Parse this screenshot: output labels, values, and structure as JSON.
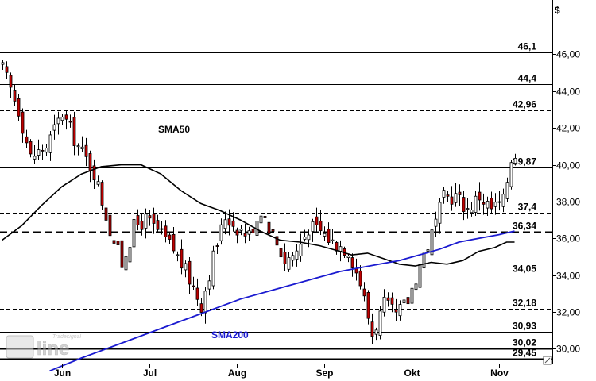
{
  "chart_data": {
    "type": "candlestick",
    "unit": "$",
    "ylim": [
      29.2,
      47.4
    ],
    "y_ticks": [
      "46,00",
      "44,00",
      "42,00",
      "40,00",
      "38,00",
      "36,00",
      "34,00",
      "32,00",
      "30,00"
    ],
    "y_tick_values": [
      46,
      44,
      42,
      40,
      38,
      36,
      34,
      32,
      30
    ],
    "x_ticks": [
      "Jun",
      "Jul",
      "Aug",
      "Sep",
      "Okt",
      "Nov"
    ],
    "x_tick_index": [
      15,
      37,
      59,
      81,
      103,
      125
    ],
    "bars": 130,
    "levels": [
      {
        "label": "46,1",
        "value": 46.1,
        "style": "solid"
      },
      {
        "label": "44,4",
        "value": 44.4,
        "style": "solid"
      },
      {
        "label": "42,96",
        "value": 42.96,
        "style": "dashed"
      },
      {
        "label": "39,87",
        "value": 39.87,
        "style": "solid"
      },
      {
        "label": "37,4",
        "value": 37.4,
        "style": "dashed"
      },
      {
        "label": "36,34",
        "value": 36.34,
        "style": "heavy-dashed"
      },
      {
        "label": "34,05",
        "value": 34.05,
        "style": "solid"
      },
      {
        "label": "32,18",
        "value": 32.18,
        "style": "dashed"
      },
      {
        "label": "30,93",
        "value": 30.93,
        "style": "solid"
      },
      {
        "label": "30,02",
        "value": 30.02,
        "style": "heavy"
      },
      {
        "label": "29,45",
        "value": 29.45,
        "style": "heavy"
      }
    ],
    "close_path": [
      [
        0,
        45.2
      ],
      [
        4,
        43.0
      ],
      [
        7,
        40.4
      ],
      [
        11,
        41.0
      ],
      [
        15,
        42.8
      ],
      [
        19,
        41.0
      ],
      [
        23,
        39.6
      ],
      [
        27,
        36.5
      ],
      [
        30,
        34.6
      ],
      [
        33,
        36.6
      ],
      [
        36,
        37.0
      ],
      [
        39,
        36.4
      ],
      [
        43,
        35.4
      ],
      [
        47,
        33.8
      ],
      [
        50,
        32.4
      ],
      [
        53,
        35.0
      ],
      [
        56,
        37.2
      ],
      [
        59,
        36.6
      ],
      [
        62,
        36.2
      ],
      [
        65,
        37.6
      ],
      [
        68,
        36.2
      ],
      [
        71,
        34.8
      ],
      [
        74,
        35.3
      ],
      [
        77,
        36.6
      ],
      [
        80,
        36.4
      ],
      [
        83,
        35.8
      ],
      [
        87,
        35.4
      ],
      [
        90,
        33.6
      ],
      [
        93,
        30.8
      ],
      [
        96,
        32.4
      ],
      [
        99,
        31.8
      ],
      [
        102,
        32.6
      ],
      [
        105,
        34.6
      ],
      [
        108,
        36.2
      ],
      [
        111,
        38.2
      ],
      [
        114,
        38.3
      ],
      [
        117,
        37.6
      ],
      [
        120,
        38.3
      ],
      [
        123,
        37.6
      ],
      [
        126,
        38.0
      ],
      [
        128,
        40.4
      ],
      [
        129,
        40.6
      ]
    ],
    "sma50": [
      [
        0,
        35.9
      ],
      [
        5,
        36.7
      ],
      [
        10,
        37.8
      ],
      [
        15,
        38.8
      ],
      [
        20,
        39.5
      ],
      [
        25,
        39.9
      ],
      [
        30,
        40.0
      ],
      [
        35,
        40.0
      ],
      [
        40,
        39.5
      ],
      [
        45,
        38.6
      ],
      [
        50,
        37.9
      ],
      [
        55,
        37.5
      ],
      [
        60,
        37.0
      ],
      [
        65,
        36.4
      ],
      [
        70,
        35.9
      ],
      [
        75,
        35.8
      ],
      [
        80,
        35.6
      ],
      [
        85,
        35.3
      ],
      [
        88,
        35.1
      ],
      [
        92,
        35.2
      ],
      [
        96,
        34.9
      ],
      [
        100,
        34.6
      ],
      [
        104,
        34.5
      ],
      [
        108,
        34.7
      ],
      [
        112,
        34.6
      ],
      [
        116,
        34.8
      ],
      [
        120,
        35.3
      ],
      [
        124,
        35.5
      ],
      [
        127,
        35.8
      ],
      [
        129,
        35.8
      ]
    ],
    "sma200": [
      [
        12,
        28.8
      ],
      [
        20,
        29.5
      ],
      [
        30,
        30.3
      ],
      [
        40,
        31.1
      ],
      [
        50,
        31.9
      ],
      [
        60,
        32.7
      ],
      [
        70,
        33.3
      ],
      [
        80,
        33.9
      ],
      [
        85,
        34.2
      ],
      [
        90,
        34.4
      ],
      [
        95,
        34.6
      ],
      [
        100,
        34.8
      ],
      [
        105,
        35.1
      ],
      [
        110,
        35.4
      ],
      [
        115,
        35.8
      ],
      [
        120,
        36.0
      ],
      [
        125,
        36.2
      ],
      [
        129,
        36.4
      ]
    ],
    "series_labels": {
      "sma50": "SMA50",
      "sma200": "SMA200"
    },
    "colors": {
      "candle_up": "#ffffff",
      "candle_down": "#c00000",
      "sma50": "#000000",
      "sma200": "#1a1ad0",
      "grid": "#000000"
    }
  },
  "watermark": {
    "brand": "line",
    "sub": "Tradesignal"
  }
}
